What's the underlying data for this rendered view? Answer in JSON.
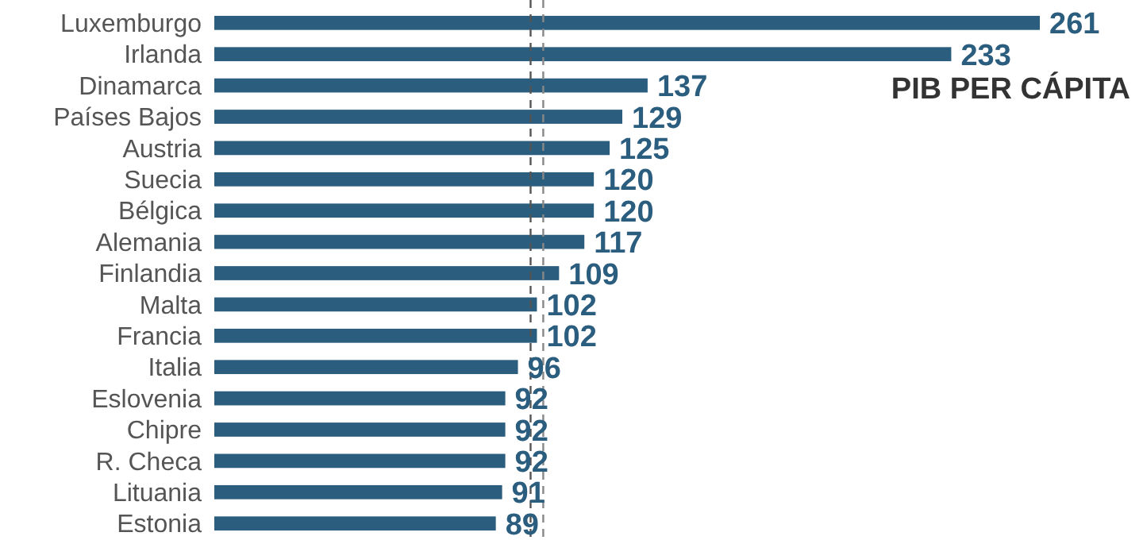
{
  "chart_data": {
    "type": "bar",
    "orientation": "horizontal",
    "title": "PIB PER CÁPITA",
    "categories": [
      "Luxemburgo",
      "Irlanda",
      "Dinamarca",
      "Países Bajos",
      "Austria",
      "Suecia",
      "Bélgica",
      "Alemania",
      "Finlandia",
      "Malta",
      "Francia",
      "Italia",
      "Eslovenia",
      "Chipre",
      "R. Checa",
      "Lituania",
      "Estonia"
    ],
    "values": [
      261,
      233,
      137,
      129,
      125,
      120,
      120,
      117,
      109,
      102,
      102,
      96,
      92,
      92,
      92,
      91,
      89
    ],
    "color": "#2b5d7e",
    "data_labels": true,
    "ref_lines": [
      {
        "axis": "x",
        "value": 100,
        "color": "#555555",
        "line_style": "dashed"
      },
      {
        "axis": "x",
        "value": 104,
        "color": "#888888",
        "line_style": "dashed"
      }
    ]
  }
}
